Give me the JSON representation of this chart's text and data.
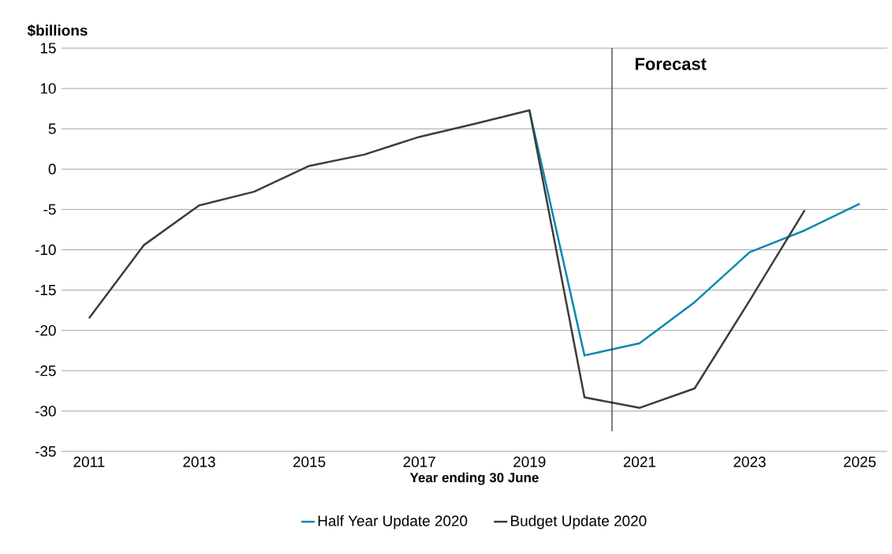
{
  "chart_data": {
    "type": "line",
    "ylabel": "$billions",
    "xlabel": "Year ending 30 June",
    "x": [
      2011,
      2012,
      2013,
      2014,
      2015,
      2016,
      2017,
      2018,
      2019,
      2020,
      2021,
      2022,
      2023,
      2024,
      2025
    ],
    "series": [
      {
        "name": "Half Year Update  2020",
        "color": "#0a87b4",
        "values": [
          null,
          null,
          null,
          null,
          null,
          null,
          null,
          null,
          7.3,
          -23.1,
          -21.6,
          -16.5,
          -10.3,
          -7.6,
          -4.3
        ]
      },
      {
        "name": "Budget Update 2020",
        "color": "#3b3d3b",
        "values": [
          -18.5,
          -9.4,
          -4.5,
          -2.8,
          0.4,
          1.8,
          4.0,
          5.6,
          7.3,
          -28.3,
          -29.6,
          -27.2,
          -16.3,
          -5.1,
          null
        ]
      }
    ],
    "xlim": [
      2010.5,
      2025.5
    ],
    "ylim": [
      -35,
      15
    ],
    "xticks": [
      2011,
      2013,
      2015,
      2017,
      2019,
      2021,
      2023,
      2025
    ],
    "yticks": [
      -35,
      -30,
      -25,
      -20,
      -15,
      -10,
      -5,
      0,
      5,
      10,
      15
    ],
    "ref_lines": [
      {
        "axis": "x",
        "value": 2020.5,
        "label": "Forecast",
        "color": "#000000"
      }
    ],
    "grid": "y",
    "legend": "bottom",
    "marker": "none",
    "line_style": "solid"
  }
}
